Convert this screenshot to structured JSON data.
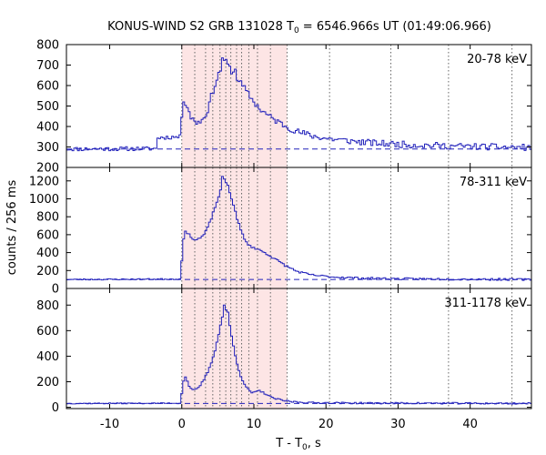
{
  "chart_data": {
    "type": "line",
    "title": {
      "prefix": "KONUS-WIND S2 GRB 131028 T",
      "sub": "0",
      "suffix": " = 6546.966s UT (01:49:06.966)"
    },
    "xlabel": {
      "prefix": "T - T",
      "sub": "0",
      "suffix": ", s"
    },
    "ylabel": "counts / 256 ms",
    "xlim": [
      -16,
      48.5
    ],
    "xticks": [
      -10,
      0,
      10,
      20,
      30,
      40
    ],
    "shaded_interval": [
      0,
      14.6
    ],
    "shade_color": "#fde5e5",
    "line_color": "#2222bb",
    "dotted_lines_x": [
      0,
      1.8,
      3.3,
      4.3,
      5.3,
      6.1,
      6.8,
      7.6,
      8.3,
      9.3,
      10.5,
      12.3,
      14.6,
      20.5,
      29.0,
      37.0,
      45.8
    ],
    "bands": [
      {
        "label": "20-78 keV",
        "ylim": [
          200,
          800
        ],
        "yticks": [
          200,
          300,
          400,
          500,
          600,
          700,
          800
        ],
        "background": 290,
        "keypoints": [
          [
            -16,
            290
          ],
          [
            -10,
            291
          ],
          [
            -3.5,
            292
          ],
          [
            -3.4,
            345
          ],
          [
            -0.1,
            350
          ],
          [
            0.1,
            555
          ],
          [
            0.6,
            510
          ],
          [
            1.2,
            445
          ],
          [
            2.0,
            420
          ],
          [
            2.8,
            430
          ],
          [
            3.5,
            470
          ],
          [
            4.2,
            560
          ],
          [
            5.0,
            645
          ],
          [
            5.8,
            710
          ],
          [
            6.5,
            690
          ],
          [
            7.2,
            660
          ],
          [
            8.0,
            620
          ],
          [
            9.0,
            570
          ],
          [
            10.0,
            520
          ],
          [
            11.0,
            480
          ],
          [
            12.5,
            440
          ],
          [
            14.0,
            410
          ],
          [
            16.0,
            375
          ],
          [
            18.0,
            355
          ],
          [
            20.0,
            342
          ],
          [
            23.0,
            330
          ],
          [
            27.0,
            318
          ],
          [
            31.0,
            312
          ],
          [
            35.0,
            307
          ],
          [
            40.0,
            302
          ],
          [
            45.0,
            299
          ],
          [
            48.5,
            297
          ]
        ],
        "noise": 10,
        "seed": 11,
        "spikes": [
          [
            5.6,
            735
          ],
          [
            6.1,
            728
          ],
          [
            6.4,
            705
          ],
          [
            7.4,
            680
          ],
          [
            1.1,
            472
          ],
          [
            0.3,
            520
          ]
        ]
      },
      {
        "label": "78-311 keV",
        "ylim": [
          0,
          1350
        ],
        "yticks": [
          0,
          200,
          400,
          600,
          800,
          1000,
          1200
        ],
        "background": 100,
        "keypoints": [
          [
            -16,
            100
          ],
          [
            -0.1,
            105
          ],
          [
            0.1,
            520
          ],
          [
            0.5,
            630
          ],
          [
            1.0,
            600
          ],
          [
            1.8,
            540
          ],
          [
            2.5,
            560
          ],
          [
            3.2,
            610
          ],
          [
            4.0,
            760
          ],
          [
            4.8,
            950
          ],
          [
            5.5,
            1120
          ],
          [
            5.9,
            1230
          ],
          [
            6.4,
            1150
          ],
          [
            7.0,
            980
          ],
          [
            7.6,
            800
          ],
          [
            8.2,
            650
          ],
          [
            8.8,
            530
          ],
          [
            9.5,
            470
          ],
          [
            10.5,
            440
          ],
          [
            11.5,
            400
          ],
          [
            12.5,
            350
          ],
          [
            13.5,
            300
          ],
          [
            14.5,
            250
          ],
          [
            16.0,
            190
          ],
          [
            18.0,
            150
          ],
          [
            21.0,
            128
          ],
          [
            25.0,
            115
          ],
          [
            30.0,
            108
          ],
          [
            40.0,
            103
          ],
          [
            48.5,
            100
          ]
        ],
        "noise": 7,
        "seed": 23,
        "spikes": [
          [
            5.7,
            1250
          ],
          [
            6.2,
            1180
          ]
        ]
      },
      {
        "label": "311-1178 keV",
        "ylim": [
          -10,
          930
        ],
        "yticks": [
          0,
          200,
          400,
          600,
          800
        ],
        "background": 30,
        "keypoints": [
          [
            -16,
            30
          ],
          [
            -0.1,
            32
          ],
          [
            0.1,
            190
          ],
          [
            0.5,
            240
          ],
          [
            1.0,
            170
          ],
          [
            1.6,
            130
          ],
          [
            2.3,
            150
          ],
          [
            3.0,
            210
          ],
          [
            3.8,
            300
          ],
          [
            4.5,
            420
          ],
          [
            5.1,
            570
          ],
          [
            5.6,
            700
          ],
          [
            6.0,
            790
          ],
          [
            6.4,
            720
          ],
          [
            6.9,
            560
          ],
          [
            7.5,
            380
          ],
          [
            8.2,
            240
          ],
          [
            9.0,
            150
          ],
          [
            9.8,
            110
          ],
          [
            10.7,
            130
          ],
          [
            11.5,
            110
          ],
          [
            12.5,
            75
          ],
          [
            13.5,
            60
          ],
          [
            15.0,
            45
          ],
          [
            18.0,
            36
          ],
          [
            25.0,
            33
          ],
          [
            48.5,
            30
          ]
        ],
        "noise": 4,
        "seed": 37,
        "spikes": [
          [
            5.9,
            800
          ],
          [
            6.3,
            745
          ]
        ]
      }
    ]
  }
}
